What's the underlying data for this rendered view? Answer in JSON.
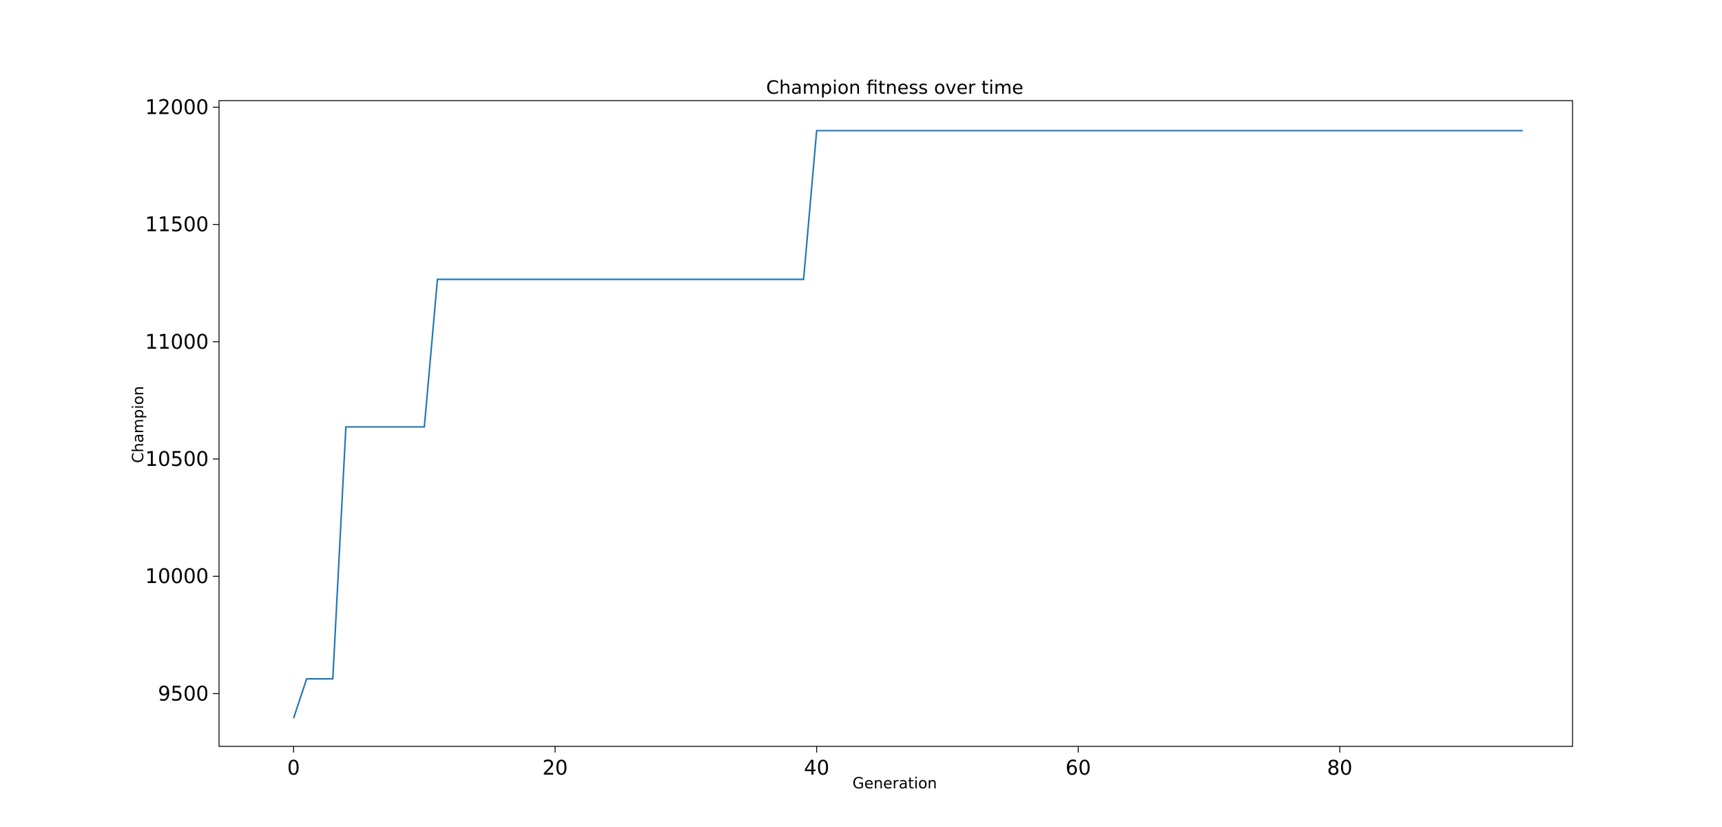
{
  "chart_data": {
    "type": "line",
    "title": "Champion fitness over time",
    "xlabel": "Generation",
    "ylabel": "Champion",
    "xlim": [
      -5.7,
      97.8
    ],
    "ylim": [
      9275,
      12028
    ],
    "xticks": [
      0,
      20,
      40,
      60,
      80
    ],
    "yticks": [
      9500,
      10000,
      10500,
      11000,
      11500,
      12000
    ],
    "grid": false,
    "line_color": "#1f77b4",
    "series": [
      {
        "x": [
          0,
          1,
          2,
          3,
          4,
          5,
          6,
          7,
          8,
          9,
          10,
          11,
          12,
          13,
          14,
          15,
          16,
          17,
          18,
          19,
          20,
          21,
          22,
          23,
          24,
          25,
          26,
          27,
          28,
          29,
          30,
          31,
          32,
          33,
          34,
          35,
          36,
          37,
          38,
          39,
          40,
          41,
          42,
          43,
          44,
          45,
          46,
          47,
          48,
          49,
          50,
          51,
          52,
          53,
          54,
          55,
          56,
          57,
          58,
          59,
          60,
          61,
          62,
          63,
          64,
          65,
          66,
          67,
          68,
          69,
          70,
          71,
          72,
          73,
          74,
          75,
          76,
          77,
          78,
          79,
          80,
          81,
          82,
          83,
          84,
          85,
          86,
          87,
          88,
          89,
          90,
          91,
          92,
          93,
          94
        ],
        "y": [
          9395,
          9563,
          9563,
          9563,
          10637,
          10637,
          10637,
          10637,
          10637,
          10637,
          10637,
          11266,
          11266,
          11266,
          11266,
          11266,
          11266,
          11266,
          11266,
          11266,
          11266,
          11266,
          11266,
          11266,
          11266,
          11266,
          11266,
          11266,
          11266,
          11266,
          11266,
          11266,
          11266,
          11266,
          11266,
          11266,
          11266,
          11266,
          11266,
          11266,
          11900,
          11900,
          11900,
          11900,
          11900,
          11900,
          11900,
          11900,
          11900,
          11900,
          11900,
          11900,
          11900,
          11900,
          11900,
          11900,
          11900,
          11900,
          11900,
          11900,
          11900,
          11900,
          11900,
          11900,
          11900,
          11900,
          11900,
          11900,
          11900,
          11900,
          11900,
          11900,
          11900,
          11900,
          11900,
          11900,
          11900,
          11900,
          11900,
          11900,
          11900,
          11900,
          11900,
          11900,
          11900,
          11900,
          11900,
          11900,
          11900,
          11900,
          11900,
          11900,
          11900,
          11900,
          11900
        ]
      }
    ]
  }
}
